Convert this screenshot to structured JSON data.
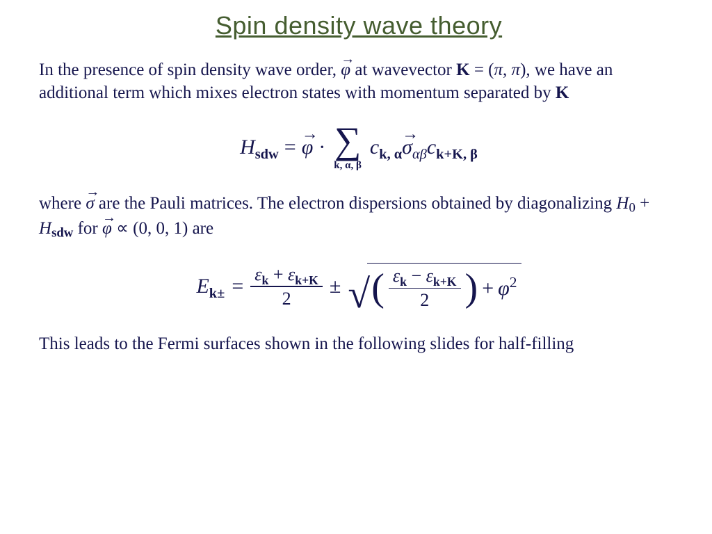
{
  "colors": {
    "title": "#455d30",
    "body_text": "#15154d",
    "background": "#ffffff"
  },
  "typography": {
    "title_family": "Arial",
    "title_fontsize_pt": 27,
    "body_family": "Georgia",
    "body_fontsize_pt": 19,
    "equation_fontsize_pt": 22
  },
  "title": "Spin density wave theory",
  "body": {
    "p1_a": "In the presence of spin density wave order, ",
    "p1_phi": "φ",
    "p1_b": " at wavevector ",
    "p1_K": "K",
    "p1_c": " = (",
    "p1_pi1": "π",
    "p1_comma": ", ",
    "p1_pi2": "π",
    "p1_d": "), we have an additional term which mixes electron states with momentum separated by ",
    "p1_K2": "K",
    "p2_a": "where ",
    "p2_sigma": "σ",
    "p2_b": " are the Pauli matrices. The electron dispersions obtained by diagonalizing ",
    "p2_H0": "H",
    "p2_H0sub": "0",
    "p2_plus": " + ",
    "p2_Hsdw": "H",
    "p2_Hsdw_sub": "sdw",
    "p2_c": " for ",
    "p2_phi": "φ",
    "p2_d": " ∝ (0, 0, 1) are",
    "p3": "This leads to the Fermi surfaces shown in the following slides for half-filling"
  },
  "eq1": {
    "lhs_H": "H",
    "lhs_sub": "sdw",
    "equals": " = ",
    "phi": "φ",
    "dot": " · ",
    "sum_symbol": "∑",
    "sum_under": "k, α, β",
    "c1": "c",
    "c1_sub": "k, α",
    "sigma": "σ",
    "sigma_sub": "αβ",
    "c2": "c",
    "c2_sub": "k+K, β"
  },
  "eq2": {
    "lhs_E": "E",
    "lhs_sub": "k±",
    "equals": " = ",
    "frac1_num_a": "ε",
    "frac1_num_a_sub": "k",
    "frac1_num_plus": " + ",
    "frac1_num_b": "ε",
    "frac1_num_b_sub": "k+K",
    "frac1_den": "2",
    "pm": " ± ",
    "radical": "√",
    "lparen": "(",
    "frac2_num_a": "ε",
    "frac2_num_a_sub": "k",
    "frac2_num_minus": " − ",
    "frac2_num_b": "ε",
    "frac2_num_b_sub": "k+K",
    "frac2_den": "2",
    "rparen": ")",
    "plus": " + ",
    "phi": "φ",
    "phi_sup": "2"
  }
}
